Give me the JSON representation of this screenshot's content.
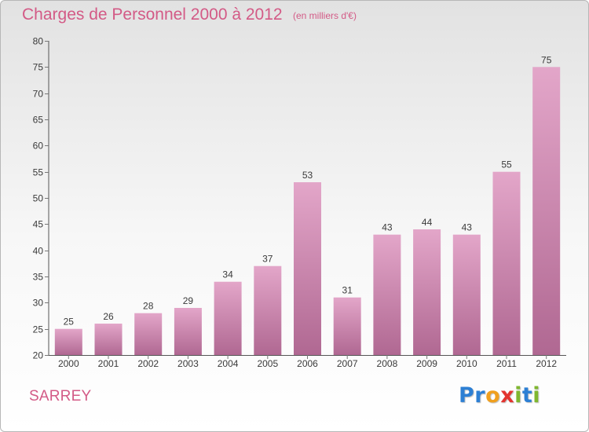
{
  "header": {
    "title": "Charges de Personnel 2000 à 2012",
    "subtitle": "(en milliers d'€)"
  },
  "footer": {
    "place": "SARREY",
    "brand_letters": [
      {
        "char": "P",
        "color": "#2c7fd4"
      },
      {
        "char": "r",
        "color": "#2c7fd4"
      },
      {
        "char": "o",
        "color": "#f0a01e"
      },
      {
        "char": "x",
        "color": "#e3342f"
      },
      {
        "char": "i",
        "color": "#7fb72f"
      },
      {
        "char": "t",
        "color": "#2c7fd4"
      },
      {
        "char": "i",
        "color": "#7fb72f"
      }
    ]
  },
  "colors": {
    "bar_top": "#e3a6c9",
    "bar_bottom": "#b06892",
    "axis": "#555555",
    "grid_tick": "#777777",
    "title": "#d35a86"
  },
  "chart_data": {
    "type": "bar",
    "title": "Charges de Personnel 2000 à 2012",
    "subtitle": "(en milliers d'€)",
    "categories": [
      "2000",
      "2001",
      "2002",
      "2003",
      "2004",
      "2005",
      "2006",
      "2007",
      "2008",
      "2009",
      "2010",
      "2011",
      "2012"
    ],
    "values": [
      25,
      26,
      28,
      29,
      34,
      37,
      53,
      31,
      43,
      44,
      43,
      55,
      75
    ],
    "data_labels": [
      "25",
      "26",
      "28",
      "29",
      "34",
      "37",
      "53",
      "31",
      "43",
      "44",
      "43",
      "55",
      "75"
    ],
    "xlabel": "",
    "ylabel": "",
    "ylim": [
      20,
      80
    ],
    "yticks": [
      "20",
      "25",
      "30",
      "35",
      "40",
      "45",
      "50",
      "55",
      "60",
      "65",
      "70",
      "75",
      "80"
    ],
    "grid": false,
    "legend": "none"
  }
}
